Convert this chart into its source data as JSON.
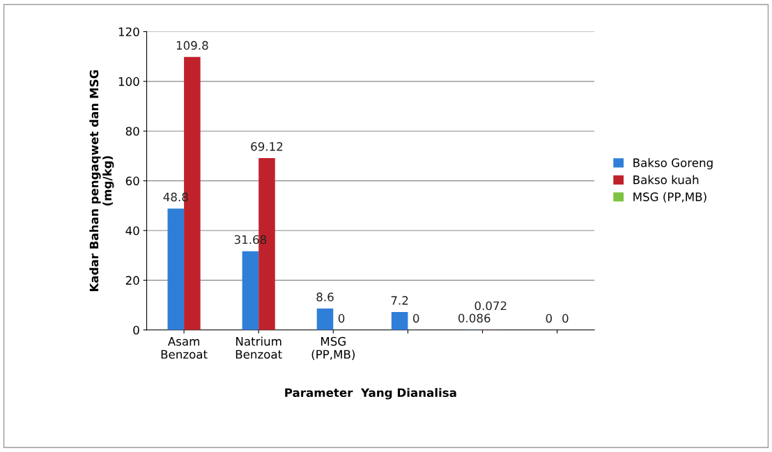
{
  "chart_data": {
    "type": "bar",
    "xlabel": "Parameter  Yang Dianalisa",
    "ylabel": "Kadar Bahan pengaqwet dan MSG\n(mg/kg)",
    "categories": [
      "Asam Benzoat",
      "Natrium Benzoat",
      "MSG (PP,MB)",
      null,
      null,
      null
    ],
    "series": [
      {
        "name": "Bakso Goreng",
        "color": "#2f7fd8",
        "values": [
          48.8,
          31.68,
          8.6,
          7.2,
          0.086,
          0
        ]
      },
      {
        "name": "Bakso kuah",
        "color": "#c0222c",
        "values": [
          109.8,
          69.12,
          0,
          0,
          0.072,
          0
        ]
      },
      {
        "name": "MSG (PP,MB)",
        "color": "#7dc242",
        "values": [
          null,
          null,
          null,
          null,
          null,
          null
        ]
      }
    ],
    "ylim": [
      0,
      120
    ],
    "yticks": [
      0,
      20,
      40,
      60,
      80,
      100,
      120
    ],
    "grid": "y",
    "legend": "right",
    "data_labels": true
  }
}
